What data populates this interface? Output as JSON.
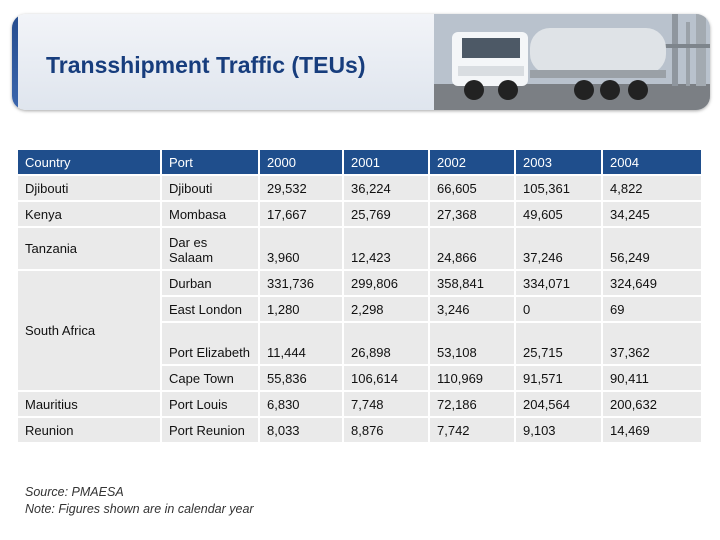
{
  "header": {
    "title": "Transshipment Traffic (TEUs)"
  },
  "table": {
    "columns": [
      "Country",
      "Port",
      "2000",
      "2001",
      "2002",
      "2003",
      "2004"
    ],
    "rows": [
      {
        "country": "Djibouti",
        "port": "Djibouti",
        "values": [
          "29,532",
          "36,224",
          "66,605",
          "105,361",
          "4,822"
        ]
      },
      {
        "country": "Kenya",
        "port": "Mombasa",
        "values": [
          "17,667",
          "25,769",
          "27,368",
          "49,605",
          "34,245"
        ]
      },
      {
        "country": "Tanzania",
        "port": "Dar es Salaam",
        "values": [
          "3,960",
          "12,423",
          "24,866",
          "37,246",
          "56,249"
        ]
      },
      {
        "country": "South Africa",
        "port": "Durban",
        "values": [
          "331,736",
          "299,806",
          "358,841",
          "334,071",
          "324,649"
        ]
      },
      {
        "port": "East London",
        "values": [
          "1,280",
          "2,298",
          "3,246",
          "0",
          "69"
        ]
      },
      {
        "port": "Port Elizabeth",
        "values": [
          "11,444",
          "26,898",
          "53,108",
          "25,715",
          "37,362"
        ]
      },
      {
        "port": "Cape Town",
        "values": [
          "55,836",
          "106,614",
          "110,969",
          "91,571",
          "90,411"
        ]
      },
      {
        "country": "Mauritius",
        "port": "Port Louis",
        "values": [
          "6,830",
          "7,748",
          "72,186",
          "204,564",
          "200,632"
        ]
      },
      {
        "country": "Reunion",
        "port": "Port Reunion",
        "values": [
          "8,033",
          "8,876",
          "7,742",
          "9,103",
          "14,469"
        ]
      }
    ]
  },
  "footnote": {
    "source": "Source: PMAESA",
    "note": "Note:  Figures shown are in calendar year"
  },
  "colors": {
    "header_bg": "#1f4e8c",
    "row_bg": "#eaeaea",
    "title": "#173d7d"
  }
}
